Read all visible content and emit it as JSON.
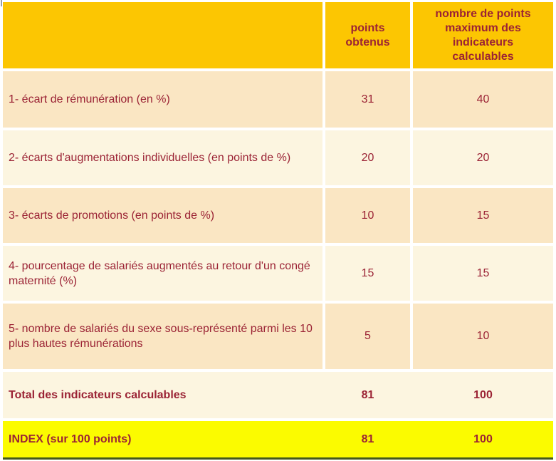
{
  "colors": {
    "page_bg": "#FFFFFF",
    "header_bg": "#FCC602",
    "row_peach": "#FAE6C3",
    "row_cream": "#FCF5E0",
    "index_bg": "#FBFB00",
    "text": "#9B2335",
    "bottom_line": "#44591C"
  },
  "table": {
    "header": {
      "col1": "",
      "col2": "points\nobtenus",
      "col3": "nombre de points\nmaximum des\nindicateurs\ncalculables"
    },
    "rows": [
      {
        "label": "1- écart de rémunération (en %)",
        "points": "31",
        "max": "40"
      },
      {
        "label": "2- écarts d'augmentations individuelles (en points de %)",
        "points": "20",
        "max": "20"
      },
      {
        "label": "3- écarts de promotions (en points de %)",
        "points": "10",
        "max": "15"
      },
      {
        "label": "4- pourcentage de salariés augmentés au retour d'un congé maternité (%)",
        "points": "15",
        "max": "15"
      },
      {
        "label": "5- nombre de salariés du sexe sous-représenté parmi les 10 plus hautes rémunérations",
        "points": "5",
        "max": "10"
      }
    ],
    "total": {
      "label": "Total des indicateurs calculables",
      "points": "81",
      "max": "100"
    },
    "index": {
      "label": "INDEX (sur 100 points)",
      "points": "81",
      "max": "100"
    }
  }
}
